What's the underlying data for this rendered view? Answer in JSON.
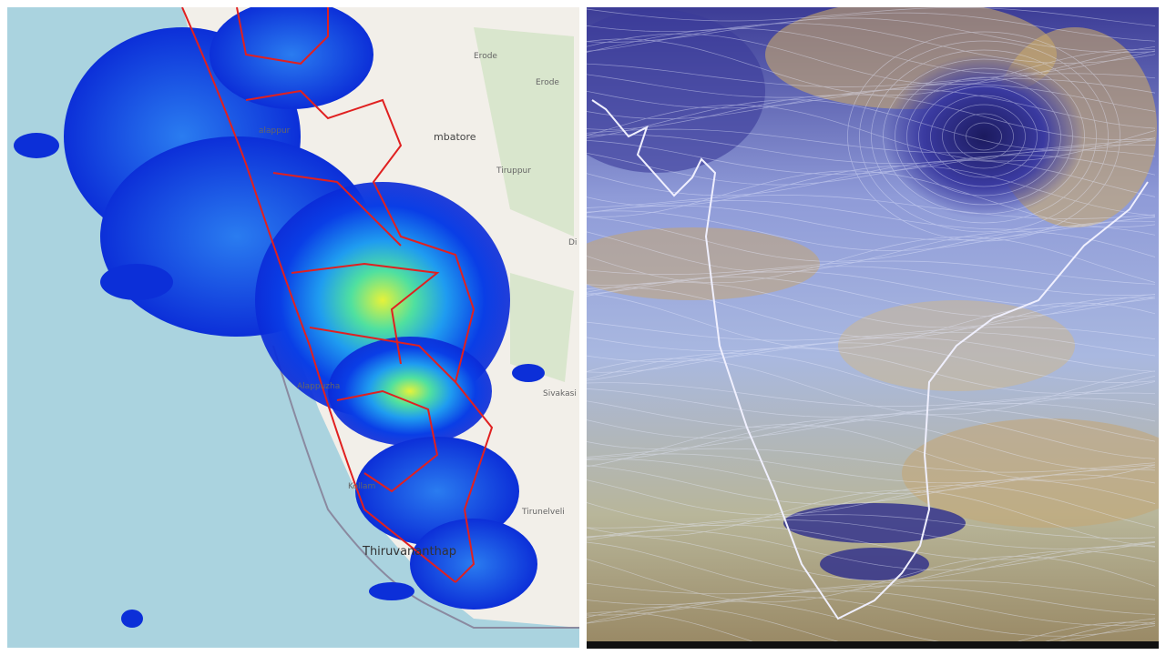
{
  "left_map": {
    "labels": [
      "Erode",
      "Erode",
      "mbatore",
      "Tiruppur",
      "alappur",
      "Di",
      "Alappuzha",
      "Sivakasi",
      "Kollam",
      "Tirunelveli",
      "Thiruvananthap"
    ]
  }
}
